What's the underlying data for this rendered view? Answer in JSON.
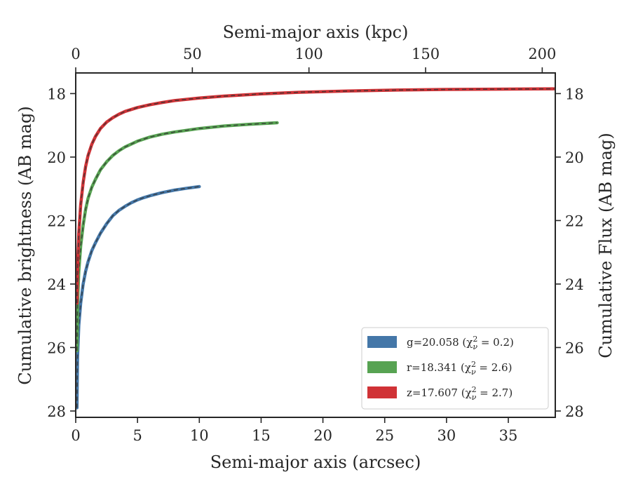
{
  "chart_data": {
    "type": "line",
    "title": "",
    "xlabel": "Semi-major axis (arcsec)",
    "ylabel": "Cumulative brightness (AB mag)",
    "top_xlabel": "Semi-major axis (kpc)",
    "right_ylabel": "Cumulative Flux (AB mag)",
    "xlim": [
      0,
      38.8
    ],
    "ylim": [
      28.2,
      17.35
    ],
    "y_inverted": true,
    "top_xlim_kpc": [
      0,
      205.6
    ],
    "xticks": [
      0,
      5,
      10,
      15,
      20,
      25,
      30,
      35
    ],
    "yticks": [
      18,
      20,
      22,
      24,
      26,
      28
    ],
    "top_xticks": [
      0,
      50,
      100,
      150,
      200
    ],
    "grid": false,
    "legend": {
      "position": "lower-right",
      "entries": [
        {
          "label": "g=20.058 ",
          "math": "(χ",
          "sup": "2",
          "sub": "ν",
          "tail": " = 0.2)",
          "color": "#4477a8"
        },
        {
          "label": "r=18.341 ",
          "math": "(χ",
          "sup": "2",
          "sub": "ν",
          "tail": " = 2.6)",
          "color": "#57a352"
        },
        {
          "label": "z=17.607 ",
          "math": "(χ",
          "sup": "2",
          "sub": "ν",
          "tail": " = 2.7)",
          "color": "#d03236"
        }
      ]
    },
    "series": [
      {
        "name": "g",
        "color": "#4477a8",
        "x": [
          0.1,
          0.15,
          0.25,
          0.4,
          0.6,
          0.8,
          1.0,
          1.3,
          1.6,
          2.0,
          2.5,
          3.0,
          3.5,
          4.0,
          4.5,
          5.0,
          5.5,
          6.0,
          7.0,
          8.0,
          9.0,
          10.0
        ],
        "y": [
          27.9,
          26.3,
          25.3,
          24.6,
          24.0,
          23.6,
          23.3,
          22.95,
          22.7,
          22.4,
          22.1,
          21.85,
          21.68,
          21.55,
          21.44,
          21.35,
          21.28,
          21.22,
          21.12,
          21.04,
          20.98,
          20.93
        ]
      },
      {
        "name": "r",
        "color": "#57a352",
        "x": [
          0.1,
          0.15,
          0.25,
          0.4,
          0.6,
          0.8,
          1.0,
          1.3,
          1.6,
          2.0,
          2.5,
          3.0,
          3.5,
          4.0,
          5.0,
          6.0,
          7.0,
          8.0,
          10.0,
          12.0,
          14.0,
          16.3
        ],
        "y": [
          26.1,
          24.6,
          23.6,
          22.8,
          22.15,
          21.65,
          21.3,
          20.95,
          20.7,
          20.4,
          20.15,
          19.95,
          19.8,
          19.68,
          19.5,
          19.37,
          19.28,
          19.21,
          19.1,
          19.02,
          18.97,
          18.92
        ]
      },
      {
        "name": "z",
        "color": "#d03236",
        "x": [
          0.1,
          0.15,
          0.25,
          0.4,
          0.6,
          0.8,
          1.0,
          1.3,
          1.6,
          2.0,
          2.5,
          3.0,
          3.5,
          4.0,
          5.0,
          6.0,
          7.0,
          8.0,
          10.0,
          12.0,
          15.0,
          18.0,
          22.0,
          26.0,
          30.0,
          34.0,
          38.7
        ],
        "y": [
          24.6,
          23.5,
          22.4,
          21.5,
          20.8,
          20.3,
          19.95,
          19.6,
          19.35,
          19.1,
          18.9,
          18.76,
          18.65,
          18.56,
          18.44,
          18.35,
          18.28,
          18.22,
          18.14,
          18.08,
          18.01,
          17.96,
          17.92,
          17.89,
          17.87,
          17.86,
          17.85
        ]
      }
    ]
  }
}
